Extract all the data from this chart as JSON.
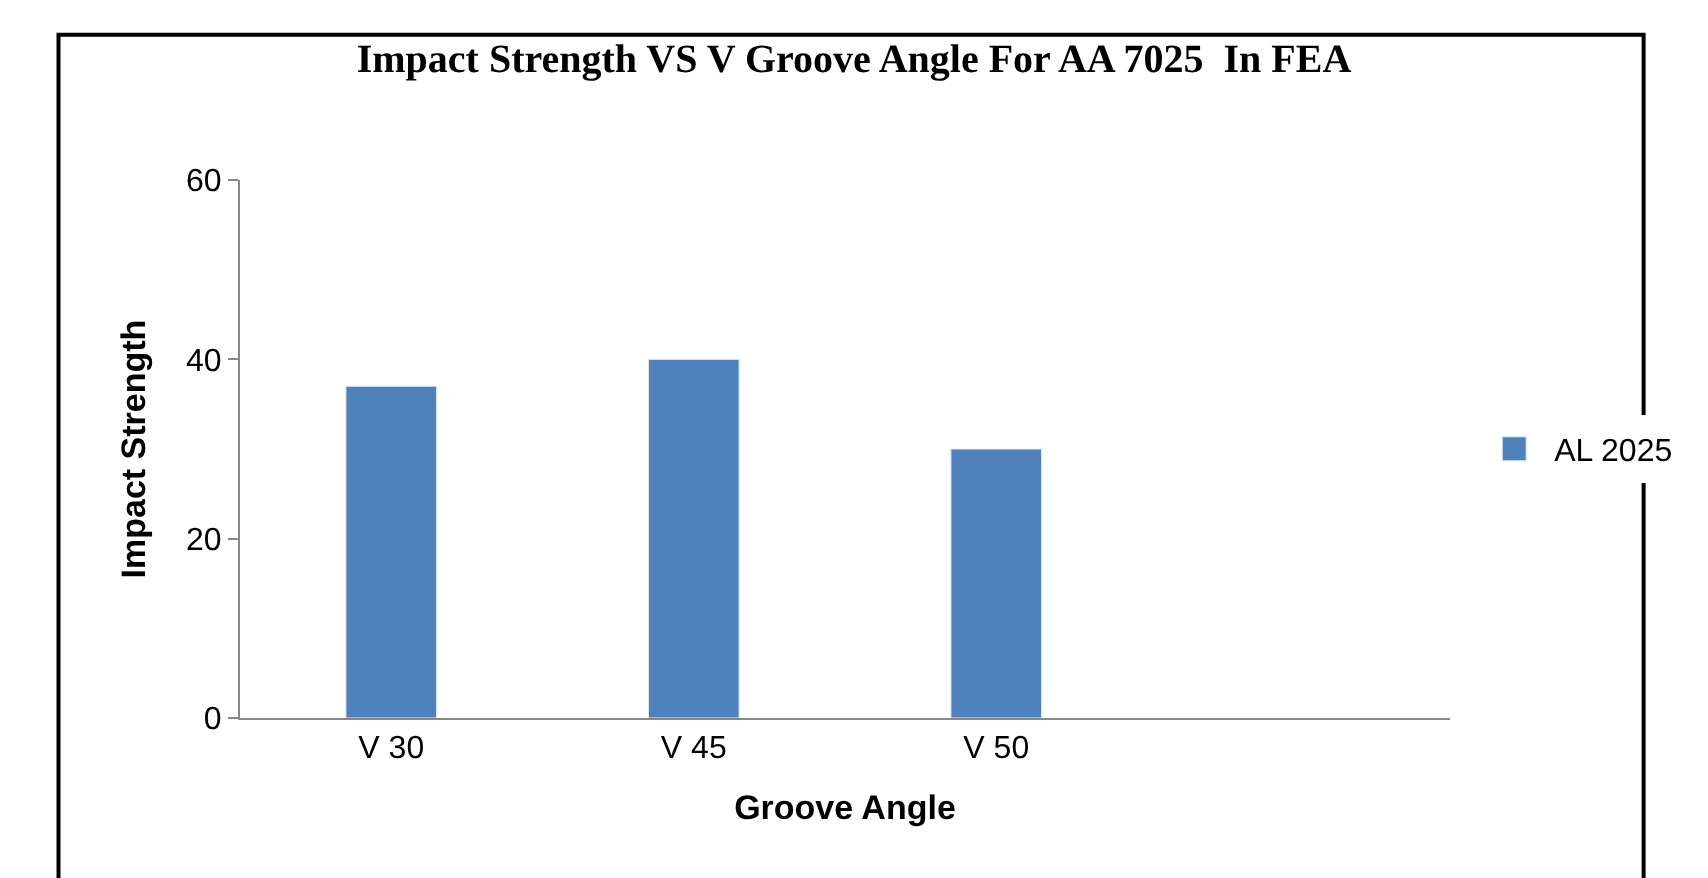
{
  "chart_data": {
    "type": "bar",
    "title": "Impact Strength VS V Groove Angle For AA 7025  In FEA",
    "xlabel": "Groove Angle",
    "ylabel": "Impact Strength",
    "categories": [
      "V 30",
      "V 45",
      "V 50"
    ],
    "series": [
      {
        "name": "AL 2025",
        "color": "#4f81bd",
        "values": [
          37,
          40,
          30
        ]
      }
    ],
    "ylim": [
      0,
      60
    ],
    "yticks": [
      0,
      20,
      40,
      60
    ],
    "grid": false,
    "legend": "right"
  }
}
